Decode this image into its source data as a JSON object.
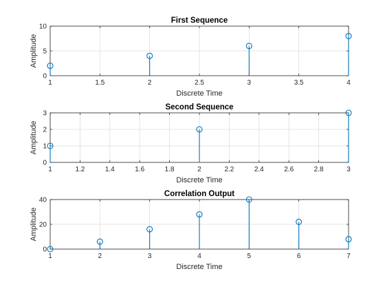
{
  "chart_data": [
    {
      "type": "stem",
      "title": "First Sequence",
      "xlabel": "Discrete Time",
      "ylabel": "Amplitude",
      "xlim": [
        1,
        4
      ],
      "ylim": [
        0,
        10
      ],
      "xticks": [
        "1",
        "1.5",
        "2",
        "2.5",
        "3",
        "3.5",
        "4"
      ],
      "yticks": [
        "0",
        "5",
        "10"
      ],
      "grid": true,
      "x": [
        1,
        2,
        3,
        4
      ],
      "values": [
        2,
        4,
        6,
        8
      ],
      "color": "#0072bd"
    },
    {
      "type": "stem",
      "title": "Second Sequence",
      "xlabel": "Discrete Time",
      "ylabel": "Amplitude",
      "xlim": [
        1,
        3
      ],
      "ylim": [
        0,
        3
      ],
      "xticks": [
        "1",
        "1.2",
        "1.4",
        "1.6",
        "1.8",
        "2",
        "2.2",
        "2.4",
        "2.6",
        "2.8",
        "3"
      ],
      "yticks": [
        "0",
        "1",
        "2",
        "3"
      ],
      "grid": true,
      "x": [
        1,
        2,
        3
      ],
      "values": [
        1,
        2,
        3
      ],
      "color": "#0072bd"
    },
    {
      "type": "stem",
      "title": "Correlation Output",
      "xlabel": "Discrete Time",
      "ylabel": "Amplitude",
      "xlim": [
        1,
        7
      ],
      "ylim": [
        0,
        40
      ],
      "xticks": [
        "1",
        "2",
        "3",
        "4",
        "5",
        "6",
        "7"
      ],
      "yticks": [
        "0",
        "20",
        "40"
      ],
      "grid": true,
      "x": [
        1,
        2,
        3,
        4,
        5,
        6,
        7
      ],
      "values": [
        0,
        6,
        16,
        28,
        40,
        22,
        8
      ],
      "color": "#0072bd"
    }
  ]
}
